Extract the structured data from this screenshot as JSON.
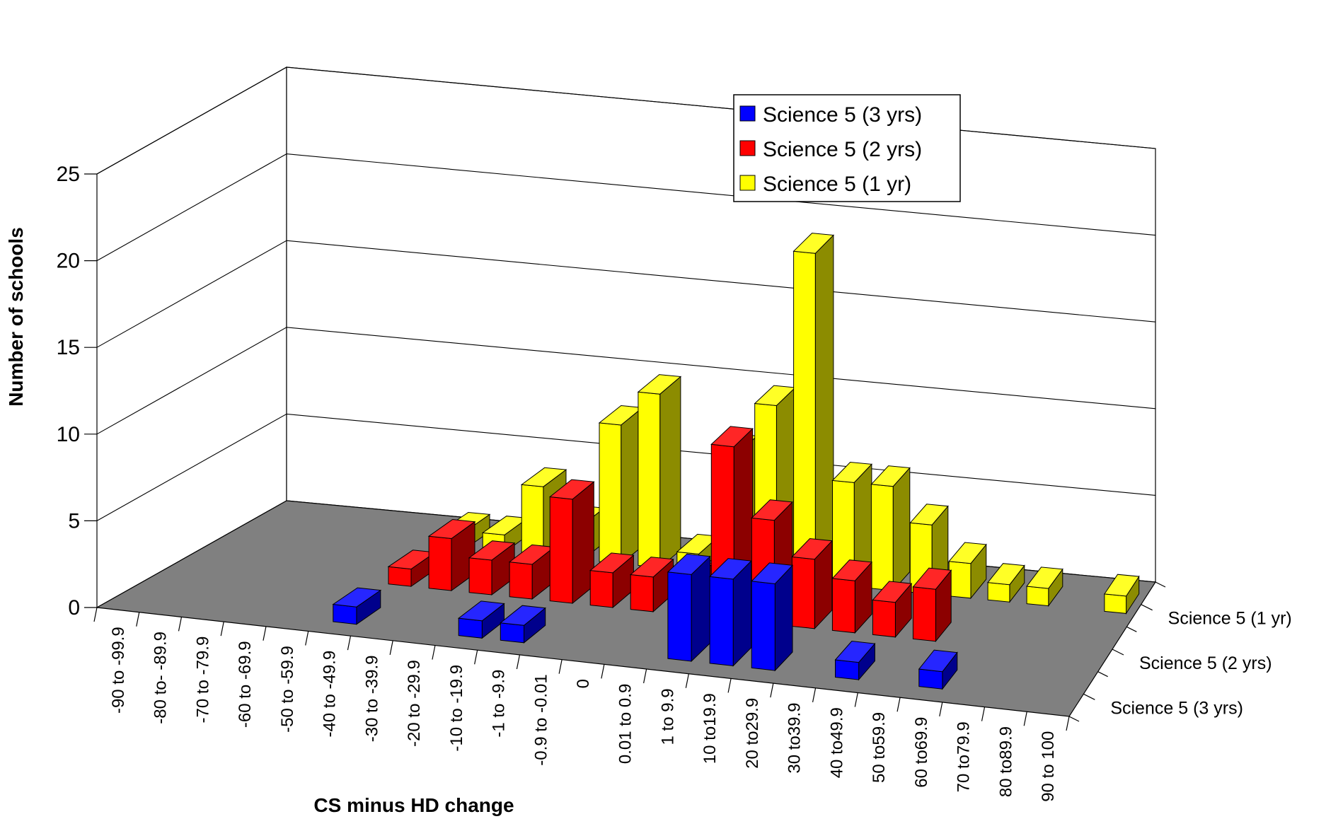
{
  "chart_data": {
    "type": "bar",
    "xlabel": "CS minus HD change",
    "ylabel": "Number of schools",
    "ylim": [
      0,
      25
    ],
    "yticks": [
      "0",
      "5",
      "10",
      "15",
      "20",
      "25"
    ],
    "categories": [
      "-90 to -99.9",
      "-80 to- -89.9",
      "-70 to -79.9",
      "-60 to -69.9",
      "-50 to -59.9",
      "-40 to -49.9",
      "-30 to -39.9",
      "-20 to -29.9",
      "-10 to -19.9",
      "-1 to -9.9",
      "-0.9 to -0.01",
      "0",
      "0.01 to 0.9",
      "1 to 9.9",
      "10 to19.9",
      "20 to29.9",
      "30 to39.9",
      "40 to49.9",
      "50 to59.9",
      "60 to69.9",
      "70 to79.9",
      "80 to89.9",
      "90  to 100"
    ],
    "series": [
      {
        "name": "Science 5  (3 yrs)",
        "color": "#0000ff",
        "values": [
          0,
          0,
          0,
          0,
          0,
          1,
          0,
          0,
          1,
          1,
          0,
          0,
          0,
          5,
          5,
          5,
          0,
          1,
          0,
          1,
          0,
          0,
          0
        ]
      },
      {
        "name": "Science 5  (2 yrs)",
        "color": "#ff0000",
        "values": [
          0,
          0,
          0,
          0,
          0,
          1,
          3,
          2,
          2,
          6,
          2,
          2,
          2,
          10,
          6,
          4,
          3,
          2,
          3,
          0,
          0,
          0,
          0
        ]
      },
      {
        "name": "Science 5  (1 yr)",
        "color": "#ffff00",
        "values": [
          0,
          0,
          0,
          0,
          0,
          1,
          1,
          4,
          2,
          8,
          10,
          1,
          7,
          10,
          19,
          6,
          6,
          4,
          2,
          1,
          1,
          0,
          1
        ]
      }
    ],
    "depth_labels": [
      "Science 5  (1 yr)",
      "Science 5  (2 yrs)",
      "Science 5  (3 yrs)"
    ],
    "legend": [
      {
        "label": "Science 5  (3 yrs)",
        "color": "#0000ff"
      },
      {
        "label": "Science 5  (2 yrs)",
        "color": "#ff0000"
      },
      {
        "label": "Science 5  (1 yr)",
        "color": "#ffff00"
      }
    ],
    "grid": true,
    "legend_position": "top-center",
    "floor_color": "#808080",
    "gridline_color": "#000000"
  }
}
